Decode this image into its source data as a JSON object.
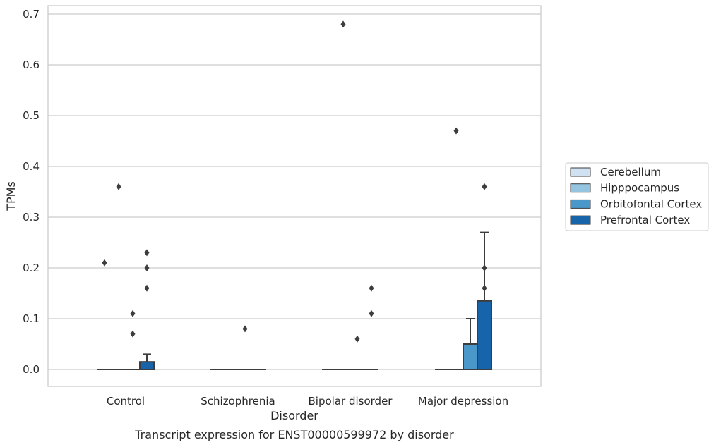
{
  "chart_data": {
    "type": "box",
    "caption": "Transcript expression for ENST00000599972 by disorder",
    "xlabel": "Disorder",
    "ylabel": "TPMs",
    "ylim": [
      -0.033,
      0.715
    ],
    "yticks": [
      0.0,
      0.1,
      0.2,
      0.3,
      0.4,
      0.5,
      0.6,
      0.7
    ],
    "ytick_labels": [
      "0.0",
      "0.1",
      "0.2",
      "0.3",
      "0.4",
      "0.5",
      "0.6",
      "0.7"
    ],
    "grid": true,
    "legend_placement": "right",
    "categories": [
      "Control",
      "Schizophrenia",
      "Bipolar disorder",
      "Major depression"
    ],
    "series": [
      {
        "name": "Cerebellum",
        "color": "#d0e1f2",
        "boxes": [
          {
            "q1": 0,
            "median": 0,
            "q3": 0,
            "whisker_low": 0,
            "whisker_high": 0,
            "outliers": [
              0.21
            ]
          },
          {
            "q1": 0,
            "median": 0,
            "q3": 0,
            "whisker_low": 0,
            "whisker_high": 0,
            "outliers": []
          },
          {
            "q1": 0,
            "median": 0,
            "q3": 0,
            "whisker_low": 0,
            "whisker_high": 0,
            "outliers": []
          },
          {
            "q1": 0,
            "median": 0,
            "q3": 0,
            "whisker_low": 0,
            "whisker_high": 0,
            "outliers": []
          }
        ]
      },
      {
        "name": "Hipppocampus",
        "color": "#94c4df",
        "boxes": [
          {
            "q1": 0,
            "median": 0,
            "q3": 0,
            "whisker_low": 0,
            "whisker_high": 0,
            "outliers": [
              0.36
            ]
          },
          {
            "q1": 0,
            "median": 0,
            "q3": 0,
            "whisker_low": 0,
            "whisker_high": 0,
            "outliers": []
          },
          {
            "q1": 0,
            "median": 0,
            "q3": 0,
            "whisker_low": 0,
            "whisker_high": 0,
            "outliers": [
              0.68
            ]
          },
          {
            "q1": 0,
            "median": 0,
            "q3": 0,
            "whisker_low": 0,
            "whisker_high": 0,
            "outliers": [
              0.47
            ]
          }
        ]
      },
      {
        "name": "Orbitofontal Cortex",
        "color": "#4a98c9",
        "boxes": [
          {
            "q1": 0,
            "median": 0,
            "q3": 0,
            "whisker_low": 0,
            "whisker_high": 0,
            "outliers": [
              0.11,
              0.07
            ]
          },
          {
            "q1": 0,
            "median": 0,
            "q3": 0,
            "whisker_low": 0,
            "whisker_high": 0,
            "outliers": [
              0.08
            ]
          },
          {
            "q1": 0,
            "median": 0,
            "q3": 0,
            "whisker_low": 0,
            "whisker_high": 0,
            "outliers": [
              0.06
            ]
          },
          {
            "q1": 0,
            "median": 0,
            "q3": 0.05,
            "whisker_low": 0,
            "whisker_high": 0.1,
            "outliers": []
          }
        ]
      },
      {
        "name": "Prefrontal Cortex",
        "color": "#1764ab",
        "boxes": [
          {
            "q1": 0,
            "median": 0,
            "q3": 0.015,
            "whisker_low": 0,
            "whisker_high": 0.03,
            "outliers": [
              0.23,
              0.2,
              0.16
            ]
          },
          {
            "q1": 0,
            "median": 0,
            "q3": 0,
            "whisker_low": 0,
            "whisker_high": 0,
            "outliers": []
          },
          {
            "q1": 0,
            "median": 0,
            "q3": 0,
            "whisker_low": 0,
            "whisker_high": 0,
            "outliers": [
              0.16,
              0.11
            ]
          },
          {
            "q1": 0,
            "median": 0,
            "q3": 0.135,
            "whisker_low": 0,
            "whisker_high": 0.27,
            "outliers": [
              0.36,
              0.2,
              0.16
            ]
          }
        ]
      }
    ]
  }
}
